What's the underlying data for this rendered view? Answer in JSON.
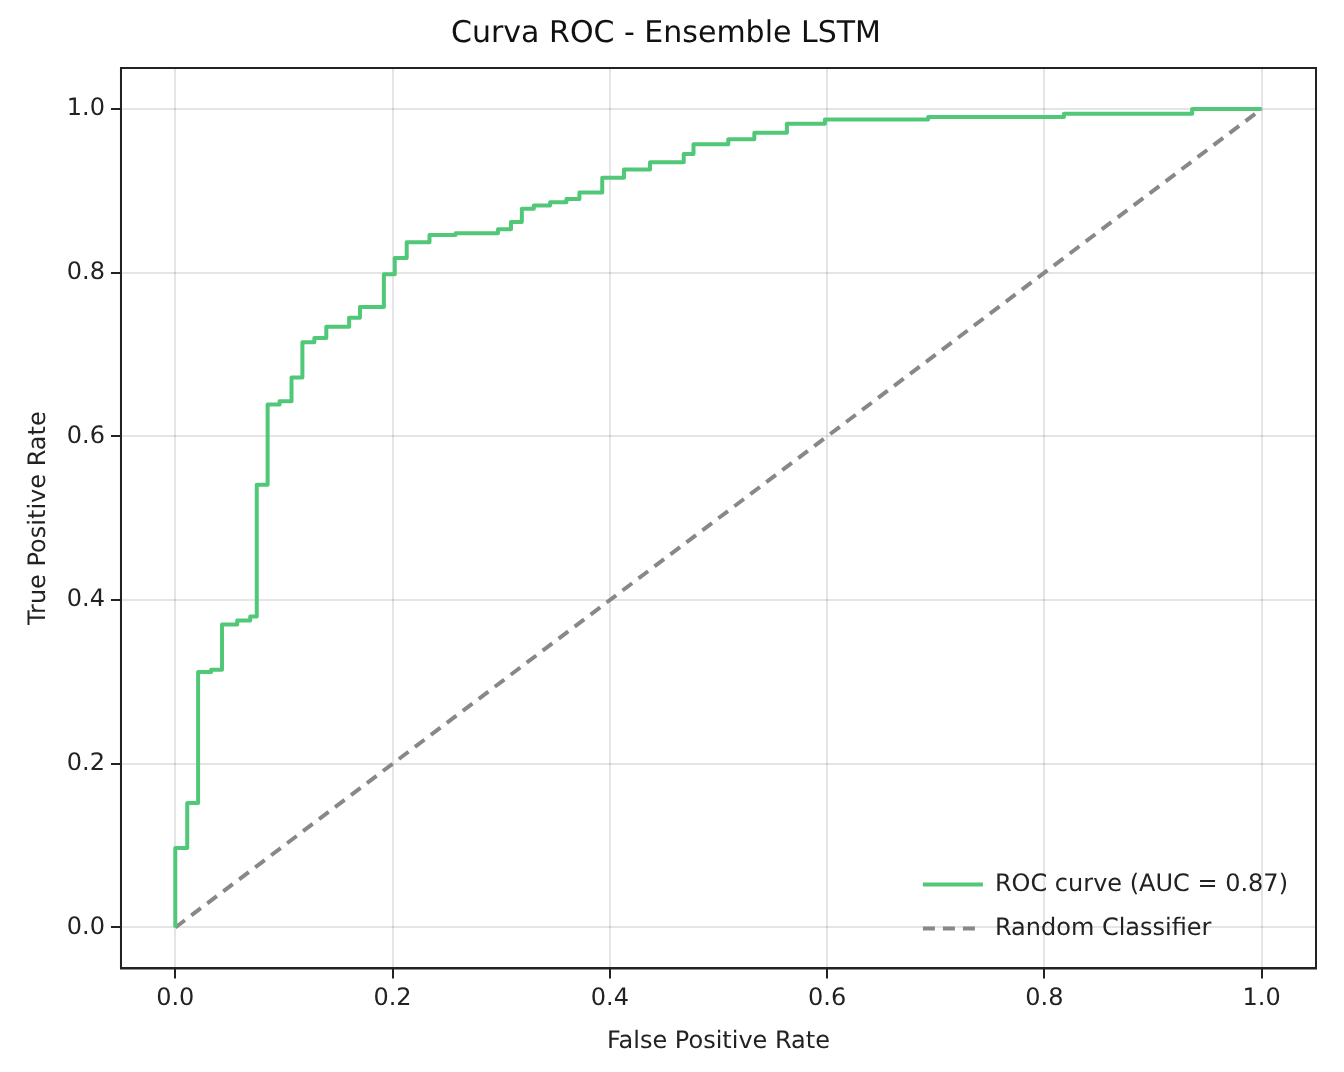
{
  "chart_data": {
    "type": "step",
    "title": "Curva ROC - Ensemble LSTM",
    "xlabel": "False Positive Rate",
    "ylabel": "True Positive Rate",
    "xlim": [
      -0.05,
      1.05
    ],
    "ylim": [
      -0.05,
      1.05
    ],
    "xticks": [
      {
        "value": 0,
        "label": "0.0"
      },
      0.2,
      0.4,
      0.6,
      0.8,
      {
        "value": 1,
        "label": "1.0"
      }
    ],
    "yticks": [
      {
        "value": 0,
        "label": "0.0"
      },
      0.2,
      0.4,
      0.6,
      0.8,
      {
        "value": 1,
        "label": "1.0"
      }
    ],
    "grid": true,
    "legend": "bottom right",
    "marker": "none",
    "series": [
      {
        "name": "ROC curve (AUC = 0.87)",
        "color": "#50c878",
        "line_style": "solid",
        "x": [
          0,
          0,
          0.011,
          0.021,
          0.033,
          0.043,
          0.057,
          0.069,
          0.075,
          0.085,
          0.096,
          0.107,
          0.117,
          0.128,
          0.139,
          0.16,
          0.17,
          0.192,
          0.202,
          0.213,
          0.234,
          0.258,
          0.297,
          0.309,
          0.319,
          0.33,
          0.345,
          0.36,
          0.372,
          0.393,
          0.413,
          0.437,
          0.468,
          0.477,
          0.509,
          0.533,
          0.563,
          0.598,
          0.693,
          0.818,
          0.936,
          1.0
        ],
        "values": [
          0,
          0.097,
          0.152,
          0.312,
          0.315,
          0.37,
          0.375,
          0.38,
          0.541,
          0.639,
          0.643,
          0.672,
          0.715,
          0.72,
          0.734,
          0.745,
          0.758,
          0.798,
          0.818,
          0.837,
          0.846,
          0.848,
          0.853,
          0.862,
          0.878,
          0.882,
          0.886,
          0.89,
          0.898,
          0.916,
          0.926,
          0.935,
          0.945,
          0.957,
          0.963,
          0.971,
          0.982,
          0.987,
          0.99,
          0.994,
          1.0,
          1.0
        ]
      },
      {
        "name": "Random Classifier",
        "type": "line",
        "color": "#888888",
        "line_style": "dashed",
        "x": [
          0,
          1
        ],
        "values": [
          0,
          1
        ]
      }
    ]
  }
}
